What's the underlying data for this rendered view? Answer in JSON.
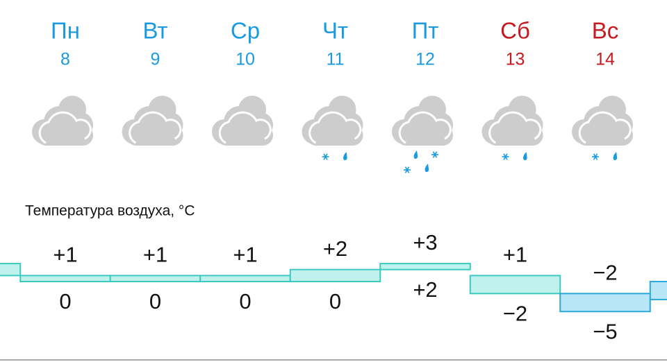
{
  "forecast": {
    "temperature_title": "Температура воздуха, °C",
    "days": [
      {
        "weekday": "Пн",
        "date": "8",
        "weekend": false,
        "icon": "cloud",
        "max": 1,
        "max_label": "+1",
        "min": 0,
        "min_label": "0"
      },
      {
        "weekday": "Вт",
        "date": "9",
        "weekend": false,
        "icon": "cloud",
        "max": 1,
        "max_label": "+1",
        "min": 0,
        "min_label": "0"
      },
      {
        "weekday": "Ср",
        "date": "10",
        "weekend": false,
        "icon": "cloud",
        "max": 1,
        "max_label": "+1",
        "min": 0,
        "min_label": "0"
      },
      {
        "weekday": "Чт",
        "date": "11",
        "weekend": false,
        "icon": "snow-rain",
        "max": 2,
        "max_label": "+2",
        "min": 0,
        "min_label": "0"
      },
      {
        "weekday": "Пт",
        "date": "12",
        "weekend": false,
        "icon": "snow-rain-heavy",
        "max": 3,
        "max_label": "+3",
        "min": 2,
        "min_label": "+2"
      },
      {
        "weekday": "Сб",
        "date": "13",
        "weekend": true,
        "icon": "snow-rain",
        "max": 1,
        "max_label": "+1",
        "min": -2,
        "min_label": "−2"
      },
      {
        "weekday": "Вс",
        "date": "14",
        "weekend": true,
        "icon": "snow-rain",
        "max": -2,
        "max_label": "−2",
        "min": -5,
        "min_label": "−5"
      }
    ],
    "edge_bands": [
      {
        "max": 3,
        "min": 1
      },
      {
        "max": 0,
        "min": -3
      }
    ]
  }
}
